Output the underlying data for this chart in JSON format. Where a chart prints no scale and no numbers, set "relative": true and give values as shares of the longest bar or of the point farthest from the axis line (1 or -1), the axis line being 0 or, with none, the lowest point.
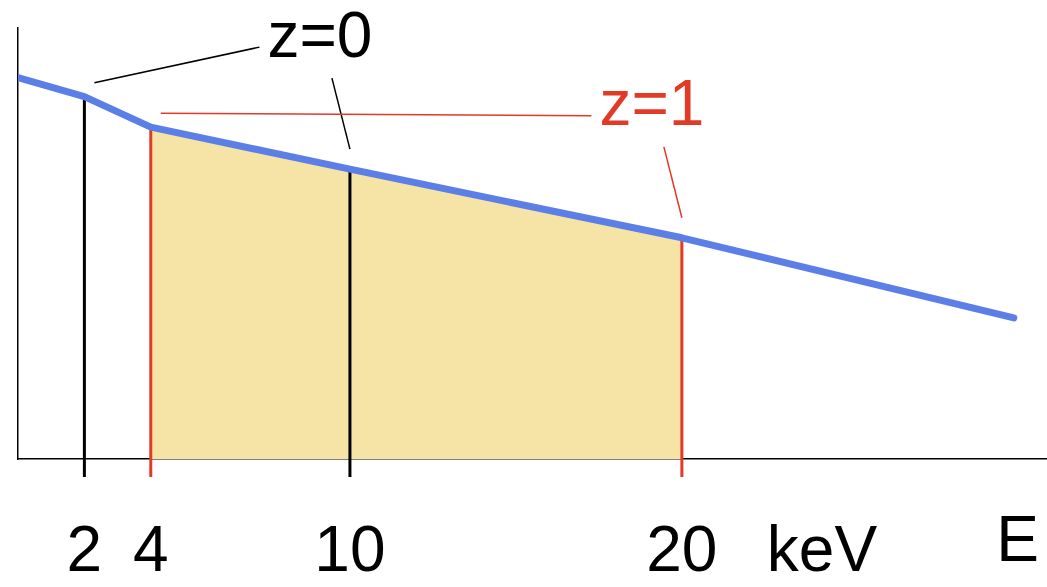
{
  "chart_data": {
    "type": "line",
    "xlabel": "E",
    "annotations": [
      {
        "text": "z=0",
        "x": 10,
        "y": 0.76
      },
      {
        "text": "z=1",
        "x": 20,
        "y": 0.58
      },
      "keV"
    ],
    "x": [
      0,
      2,
      4,
      10,
      20,
      30
    ],
    "values": [
      1,
      0.95,
      0.87,
      0.76,
      0.58,
      0.37
    ],
    "color": "#5b7fe6",
    "relative": true,
    "xlim": [
      0,
      31
    ],
    "xticks": [
      2,
      4,
      10,
      20
    ],
    "marker": "none",
    "line_style": "solid",
    "bands": [
      {
        "axis": "x",
        "from": 4,
        "to": 20,
        "color": "#f5e4a6"
      }
    ],
    "ref_lines": [
      {
        "axis": "x",
        "value": 2,
        "color": "#000000"
      },
      {
        "axis": "x",
        "value": 10,
        "color": "#000000"
      },
      {
        "axis": "x",
        "value": 4,
        "color": "#e23a26"
      },
      {
        "axis": "x",
        "value": 20,
        "color": "#e23a26"
      }
    ]
  }
}
